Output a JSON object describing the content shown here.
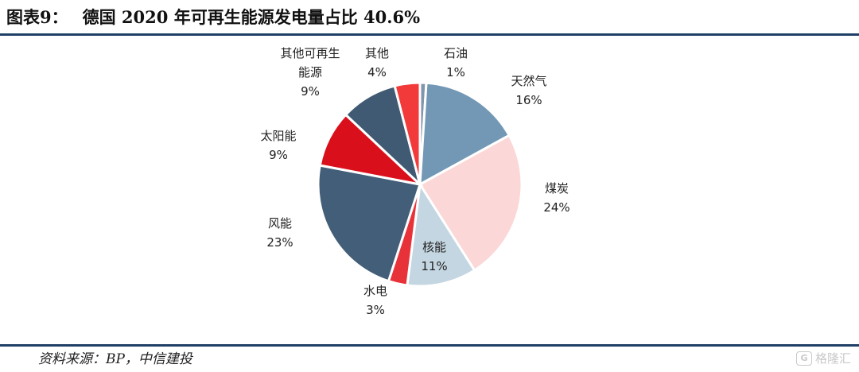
{
  "figure": {
    "label": "图表9：",
    "title": "德国 2020 年可再生能源发电量占比 40.6%"
  },
  "source": "资料来源：BP，中信建投",
  "watermark": "格隆汇",
  "chart_data": {
    "type": "pie",
    "title": "",
    "slices": [
      {
        "name": "石油",
        "value": 1,
        "color": "#7f96ad"
      },
      {
        "name": "天然气",
        "value": 16,
        "color": "#7398b5"
      },
      {
        "name": "煤炭",
        "value": 24,
        "color": "#fbd7d7"
      },
      {
        "name": "核能",
        "value": 11,
        "color": "#c4d6e1"
      },
      {
        "name": "水电",
        "value": 3,
        "color": "#e8323a"
      },
      {
        "name": "风能",
        "value": 23,
        "color": "#435e78"
      },
      {
        "name": "太阳能",
        "value": 9,
        "color": "#d9101c"
      },
      {
        "name": "其他可再生能源",
        "value": 9,
        "color": "#3f5a72"
      },
      {
        "name": "其他",
        "value": 4,
        "color": "#f23a3a"
      }
    ]
  }
}
